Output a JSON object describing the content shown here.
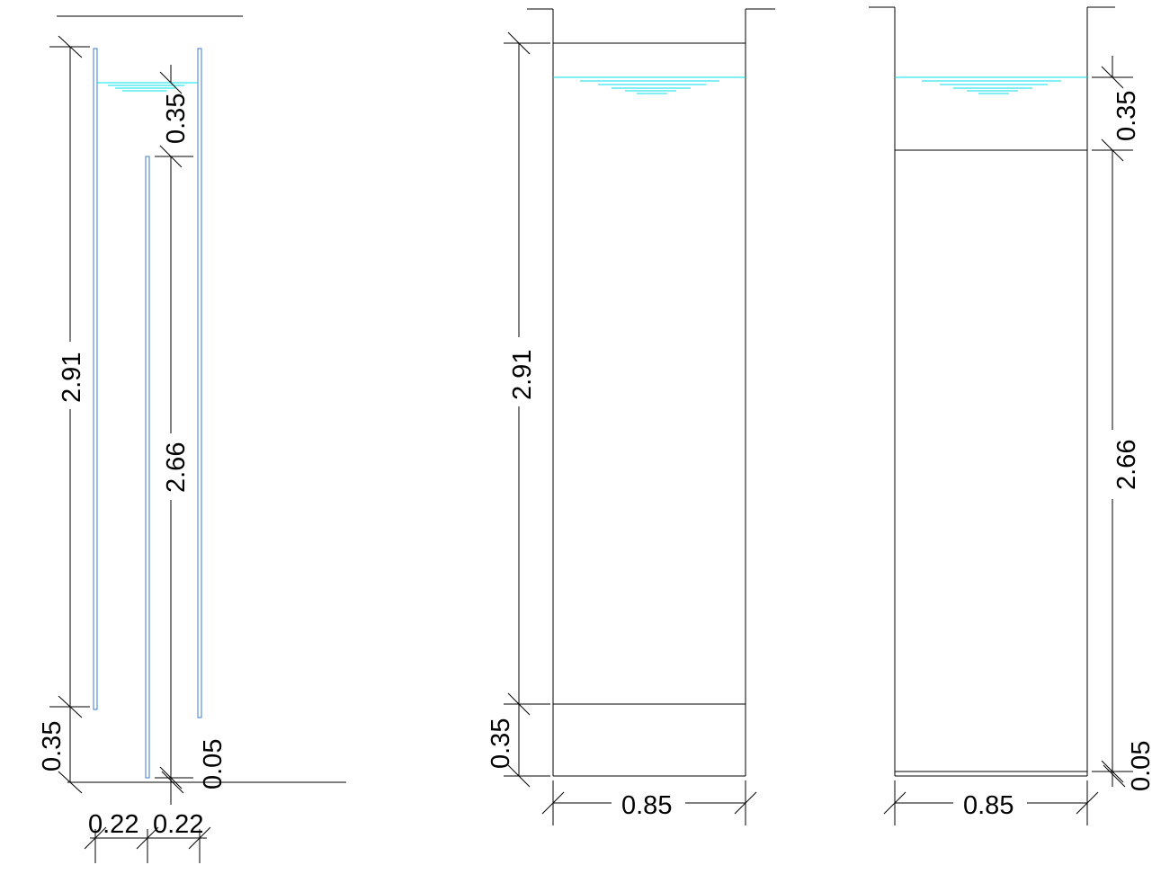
{
  "colors": {
    "lines": "#000000",
    "walls": "#3a78d8",
    "water": "#00e0e8",
    "background": "#ffffff"
  },
  "section_left": {
    "dim_total_height": "2.91",
    "dim_baffle_height": "2.66",
    "dim_top": "0.35",
    "dim_bottom": "0.35",
    "dim_gap": "0.05",
    "dim_width_left": "0.22",
    "dim_width_right": "0.22"
  },
  "section_middle": {
    "dim_height": "2.91",
    "dim_bottom": "0.35",
    "dim_width": "0.85"
  },
  "section_right": {
    "dim_height": "2.66",
    "dim_top": "0.35",
    "dim_bottom": "0.05",
    "dim_width": "0.85"
  }
}
